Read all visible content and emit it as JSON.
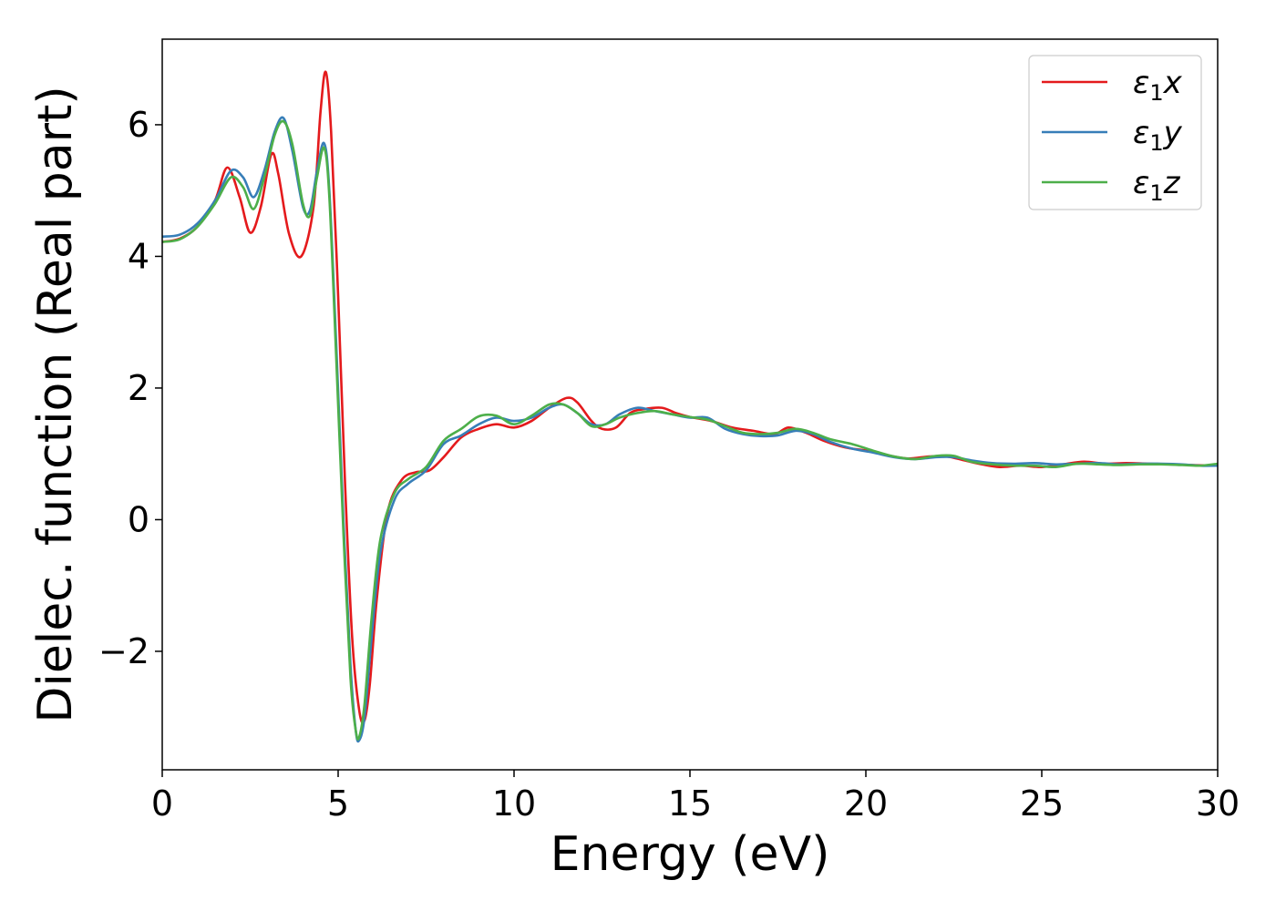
{
  "chart_data": {
    "type": "line",
    "xlabel": "Energy (eV)",
    "ylabel": "Dielec. function (Real part)",
    "xlim": [
      0,
      30
    ],
    "ylim": [
      -3.8,
      7.3
    ],
    "xticks": [
      0,
      5,
      10,
      15,
      20,
      25,
      30
    ],
    "xtick_labels": [
      "0",
      "5",
      "10",
      "15",
      "20",
      "25",
      "30"
    ],
    "yticks": [
      -2,
      0,
      2,
      4,
      6
    ],
    "ytick_labels": [
      "−2",
      "0",
      "2",
      "4",
      "6"
    ],
    "grid": false,
    "legend_position": "top-right",
    "series": [
      {
        "name": "ε1x",
        "legend_main": "ε",
        "legend_sub": "1",
        "legend_var": "x",
        "color": "#e41a1c",
        "x": [
          0,
          0.5,
          1.0,
          1.5,
          1.85,
          2.2,
          2.5,
          2.8,
          3.1,
          3.3,
          3.6,
          3.95,
          4.3,
          4.5,
          4.65,
          4.8,
          5.0,
          5.2,
          5.4,
          5.6,
          5.75,
          5.9,
          6.1,
          6.4,
          6.8,
          7.2,
          7.6,
          8.0,
          8.5,
          9.0,
          9.5,
          10.0,
          10.5,
          11.0,
          11.5,
          11.8,
          12.2,
          12.5,
          12.9,
          13.3,
          13.7,
          14.2,
          14.6,
          15.0,
          15.6,
          16.2,
          16.8,
          17.4,
          17.8,
          18.3,
          18.8,
          19.4,
          20.0,
          20.6,
          21.2,
          21.8,
          22.3,
          22.8,
          23.3,
          23.8,
          24.4,
          25.0,
          25.6,
          26.2,
          26.8,
          27.4,
          28.0,
          28.6,
          29.2,
          30.0
        ],
        "y": [
          4.22,
          4.27,
          4.45,
          4.85,
          5.35,
          4.9,
          4.36,
          4.75,
          5.55,
          5.25,
          4.35,
          4.0,
          4.75,
          6.2,
          6.8,
          5.9,
          3.4,
          0.5,
          -1.8,
          -2.9,
          -3.05,
          -2.5,
          -1.2,
          0.1,
          0.6,
          0.72,
          0.75,
          0.95,
          1.25,
          1.38,
          1.45,
          1.4,
          1.5,
          1.7,
          1.85,
          1.78,
          1.5,
          1.38,
          1.4,
          1.62,
          1.68,
          1.7,
          1.62,
          1.56,
          1.5,
          1.4,
          1.35,
          1.3,
          1.4,
          1.32,
          1.2,
          1.1,
          1.05,
          0.98,
          0.93,
          0.96,
          0.96,
          0.9,
          0.84,
          0.8,
          0.82,
          0.8,
          0.84,
          0.88,
          0.85,
          0.86,
          0.85,
          0.84,
          0.83,
          0.82
        ]
      },
      {
        "name": "ε1y",
        "legend_main": "ε",
        "legend_sub": "1",
        "legend_var": "y",
        "color": "#377eb8",
        "x": [
          0,
          0.5,
          1.0,
          1.5,
          1.95,
          2.3,
          2.6,
          2.9,
          3.2,
          3.45,
          3.7,
          4.0,
          4.2,
          4.4,
          4.6,
          4.75,
          4.95,
          5.15,
          5.35,
          5.5,
          5.6,
          5.75,
          5.95,
          6.2,
          6.6,
          7.0,
          7.5,
          8.0,
          8.5,
          9.0,
          9.5,
          10.0,
          10.5,
          11.0,
          11.4,
          11.8,
          12.2,
          12.6,
          13.0,
          13.5,
          14.0,
          14.5,
          15.0,
          15.5,
          16.0,
          16.5,
          17.0,
          17.5,
          18.0,
          18.5,
          19.0,
          19.6,
          20.2,
          20.8,
          21.4,
          22.0,
          22.5,
          23.0,
          23.6,
          24.2,
          24.8,
          25.4,
          26.0,
          26.6,
          27.2,
          27.8,
          28.4,
          29.0,
          29.5,
          30.0
        ],
        "y": [
          4.3,
          4.33,
          4.5,
          4.85,
          5.3,
          5.2,
          4.9,
          5.3,
          5.9,
          6.1,
          5.6,
          4.75,
          4.7,
          5.3,
          5.72,
          5.0,
          2.6,
          0.0,
          -2.2,
          -3.2,
          -3.35,
          -3.0,
          -1.8,
          -0.5,
          0.3,
          0.55,
          0.75,
          1.15,
          1.28,
          1.45,
          1.55,
          1.5,
          1.55,
          1.7,
          1.75,
          1.62,
          1.45,
          1.45,
          1.6,
          1.7,
          1.65,
          1.6,
          1.55,
          1.55,
          1.38,
          1.3,
          1.27,
          1.28,
          1.35,
          1.3,
          1.18,
          1.08,
          1.02,
          0.95,
          0.92,
          0.95,
          0.95,
          0.9,
          0.86,
          0.85,
          0.86,
          0.84,
          0.85,
          0.86,
          0.84,
          0.85,
          0.85,
          0.84,
          0.82,
          0.82
        ]
      },
      {
        "name": "ε1z",
        "legend_main": "ε",
        "legend_sub": "1",
        "legend_var": "z",
        "color": "#4daf4a",
        "x": [
          0,
          0.5,
          1.0,
          1.5,
          1.95,
          2.3,
          2.6,
          2.9,
          3.2,
          3.45,
          3.7,
          4.0,
          4.2,
          4.4,
          4.6,
          4.75,
          4.95,
          5.15,
          5.35,
          5.5,
          5.6,
          5.75,
          5.95,
          6.2,
          6.6,
          7.0,
          7.5,
          8.0,
          8.5,
          9.0,
          9.5,
          10.0,
          10.5,
          11.0,
          11.4,
          11.8,
          12.2,
          12.6,
          13.0,
          13.5,
          14.0,
          14.5,
          15.0,
          15.5,
          16.0,
          16.5,
          17.0,
          17.5,
          18.0,
          18.5,
          19.0,
          19.6,
          20.2,
          20.8,
          21.4,
          22.0,
          22.5,
          23.0,
          23.6,
          24.2,
          24.8,
          25.4,
          26.0,
          26.6,
          27.2,
          27.8,
          28.4,
          29.0,
          29.5,
          30.0
        ],
        "y": [
          4.22,
          4.26,
          4.45,
          4.8,
          5.2,
          5.05,
          4.72,
          5.2,
          5.85,
          6.05,
          5.7,
          4.8,
          4.62,
          5.2,
          5.65,
          4.9,
          2.4,
          -0.2,
          -2.4,
          -3.2,
          -3.3,
          -2.8,
          -1.5,
          -0.3,
          0.4,
          0.62,
          0.8,
          1.2,
          1.38,
          1.57,
          1.58,
          1.45,
          1.58,
          1.75,
          1.75,
          1.62,
          1.42,
          1.45,
          1.55,
          1.62,
          1.65,
          1.6,
          1.56,
          1.52,
          1.42,
          1.32,
          1.3,
          1.32,
          1.38,
          1.32,
          1.22,
          1.15,
          1.05,
          0.96,
          0.92,
          0.97,
          0.97,
          0.88,
          0.84,
          0.82,
          0.82,
          0.8,
          0.85,
          0.84,
          0.83,
          0.84,
          0.84,
          0.83,
          0.82,
          0.85
        ]
      }
    ]
  }
}
